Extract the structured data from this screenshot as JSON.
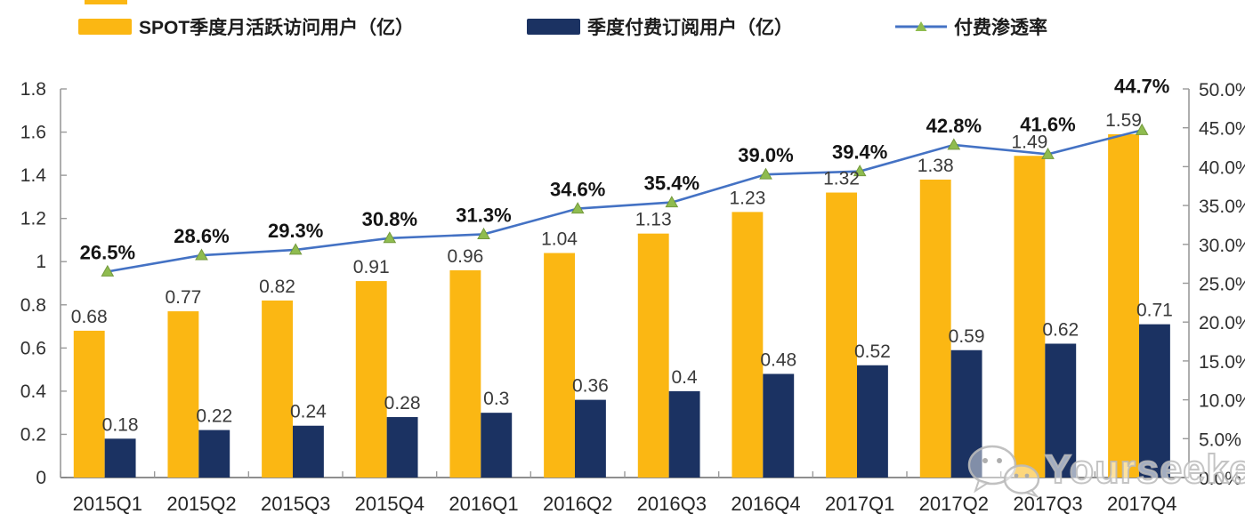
{
  "legend": {
    "items": [
      {
        "label": "SPOT季度月活跃访问用户（亿）",
        "swatch": "bar",
        "color": "#FBB713"
      },
      {
        "label": "季度付费订阅用户（亿）",
        "swatch": "bar",
        "color": "#1B3262"
      },
      {
        "label": "付费渗透率",
        "swatch": "line",
        "line_color": "#4472C4",
        "marker_color": "#8FBC4F"
      }
    ]
  },
  "watermark": {
    "text": "Yourseeker",
    "icon": "wechat-icon"
  },
  "chart_data": {
    "type": "bar+line combo",
    "categories": [
      "2015Q1",
      "2015Q2",
      "2015Q3",
      "2015Q4",
      "2016Q1",
      "2016Q2",
      "2016Q3",
      "2016Q4",
      "2017Q1",
      "2017Q2",
      "2017Q3",
      "2017Q4"
    ],
    "series": [
      {
        "name": "SPOT季度月活跃访问用户（亿）",
        "type": "bar",
        "axis": "left",
        "color": "#FBB713",
        "values": [
          0.68,
          0.77,
          0.82,
          0.91,
          0.96,
          1.04,
          1.13,
          1.23,
          1.32,
          1.38,
          1.49,
          1.59
        ],
        "labels": [
          "0.68",
          "0.77",
          "0.82",
          "0.91",
          "0.96",
          "1.04",
          "1.13",
          "1.23",
          "1.32",
          "1.38",
          "1.49",
          "1.59"
        ]
      },
      {
        "name": "季度付费订阅用户（亿）",
        "type": "bar",
        "axis": "left",
        "color": "#1B3262",
        "values": [
          0.18,
          0.22,
          0.24,
          0.28,
          0.3,
          0.36,
          0.4,
          0.48,
          0.52,
          0.59,
          0.62,
          0.71
        ],
        "labels": [
          "0.18",
          "0.22",
          "0.24",
          "0.28",
          "0.3",
          "0.36",
          "0.4",
          "0.48",
          "0.52",
          "0.59",
          "0.62",
          "0.71"
        ]
      },
      {
        "name": "付费渗透率",
        "type": "line",
        "axis": "right",
        "color": "#4472C4",
        "marker": "triangle",
        "marker_color": "#8FBC4F",
        "marker_edge_color": "#74993D",
        "values": [
          26.5,
          28.6,
          29.3,
          30.8,
          31.3,
          34.6,
          35.4,
          39.0,
          39.4,
          42.8,
          41.6,
          44.7
        ],
        "labels": [
          "26.5%",
          "28.6%",
          "29.3%",
          "30.8%",
          "31.3%",
          "34.6%",
          "35.4%",
          "39.0%",
          "39.4%",
          "42.8%",
          "41.6%",
          "44.7%"
        ]
      }
    ],
    "left_axis": {
      "min": 0,
      "max": 1.8,
      "step": 0.2,
      "ticks": [
        "0",
        "0.2",
        "0.4",
        "0.6",
        "0.8",
        "1",
        "1.2",
        "1.4",
        "1.6",
        "1.8"
      ]
    },
    "right_axis": {
      "min": 0,
      "max": 50,
      "step": 5,
      "ticks": [
        "0.0%",
        "5.0%",
        "10.0%",
        "15.0%",
        "20.0%",
        "25.0%",
        "30.0%",
        "35.0%",
        "40.0%",
        "45.0%",
        "50.0%"
      ]
    },
    "grid": false,
    "legend_position": "top"
  }
}
